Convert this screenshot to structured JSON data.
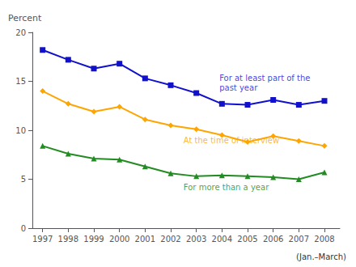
{
  "chart_data": {
    "type": "line",
    "x": [
      1997,
      1998,
      1999,
      2000,
      2001,
      2002,
      2003,
      2004,
      2005,
      2006,
      2007,
      2008
    ],
    "series": [
      {
        "color": "#1111CC",
        "marker": "square",
        "values": [
          18.2,
          17.2,
          16.3,
          16.8,
          15.3,
          14.6,
          13.8,
          12.7,
          12.6,
          13.1,
          12.6,
          13.0
        ]
      },
      {
        "color": "#FFA500",
        "marker": "diamond",
        "values": [
          14.0,
          12.7,
          11.9,
          12.4,
          11.1,
          10.5,
          10.1,
          9.5,
          8.8,
          9.4,
          8.9,
          8.4
        ]
      },
      {
        "color": "#228B22",
        "marker": "triangle",
        "values": [
          8.4,
          7.6,
          7.1,
          7.0,
          6.3,
          5.6,
          5.3,
          5.4,
          5.3,
          5.2,
          5.0,
          5.7
        ]
      }
    ],
    "annotations": [
      {
        "text": "For at least part of the",
        "x": 2003.9,
        "y": 15.3,
        "color": "#1111CC"
      },
      {
        "text": "past year",
        "x": 2003.9,
        "y": 14.3,
        "color": "#1111CC"
      },
      {
        "text": "At the time of interview",
        "x": 2002.5,
        "y": 9.0,
        "color": "#FFA500"
      },
      {
        "text": "For more than a year",
        "x": 2002.5,
        "y": 4.2,
        "color": "#228B22"
      }
    ],
    "ylabel": "Percent",
    "xlabel": "(Jan.–March)",
    "xlim": [
      1996.6,
      2008.6
    ],
    "xticks": [
      1997,
      1998,
      1999,
      2000,
      2001,
      2002,
      2003,
      2004,
      2005,
      2006,
      2007,
      2008
    ],
    "ylim": [
      0,
      20
    ],
    "yticks": [
      0,
      5,
      10,
      15,
      20
    ],
    "grid": false
  }
}
